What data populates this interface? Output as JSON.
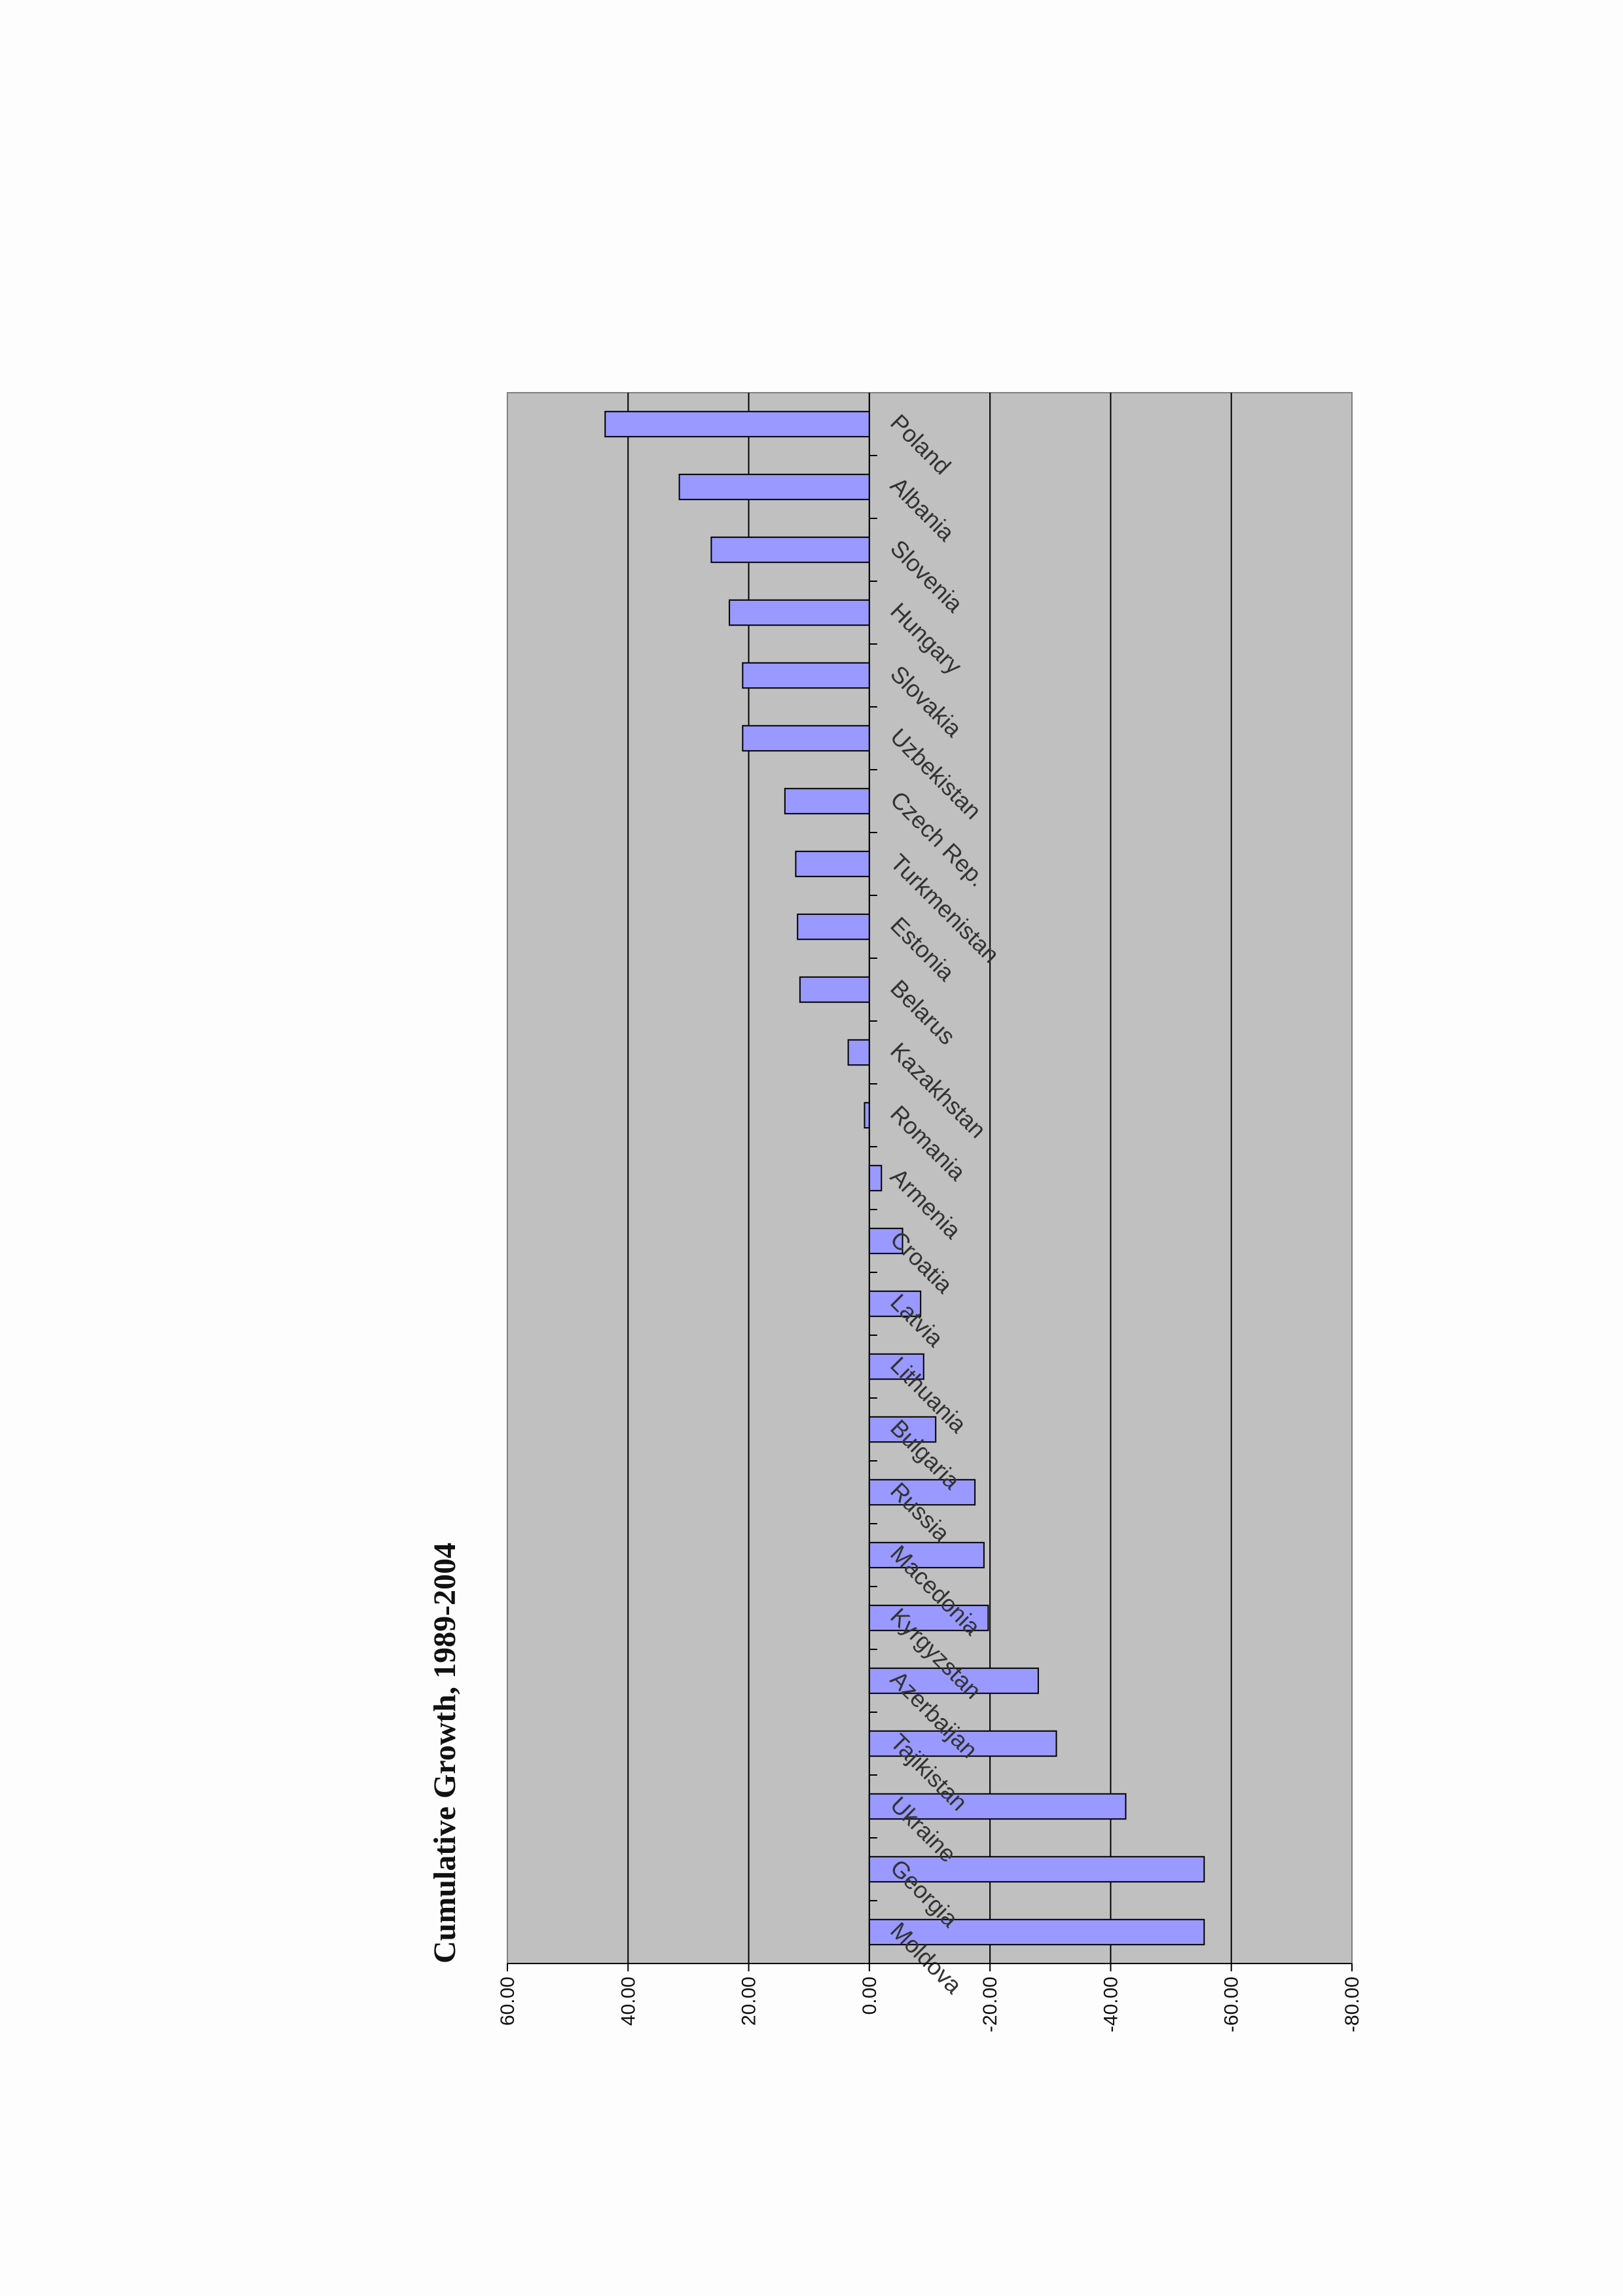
{
  "chart_data": {
    "type": "bar",
    "orientation": "rotated-90-ccw",
    "title": "Cumulative Growth, 1989-2004",
    "xlabel": "",
    "ylabel": "",
    "ylim": [
      -80,
      60
    ],
    "ytick_labels": [
      "60.00",
      "40.00",
      "20.00",
      "0.00",
      "-20.00",
      "-40.00",
      "-60.00",
      "-80.00"
    ],
    "grid": true,
    "legend": "none",
    "categories": [
      "Moldova",
      "Georgia",
      "Ukraine",
      "Tajikistan",
      "Azerbaijan",
      "Kyrgyzstan",
      "Macedonia",
      "Russia",
      "Bulgaria",
      "Lithuania",
      "Latvia",
      "Croatia",
      "Armenia",
      "Romania",
      "Kazakhstan",
      "Belarus",
      "Estonia",
      "Turkmenistan",
      "Czech Rep.",
      "Uzbekistan",
      "Slovakia",
      "Hungary",
      "Slovenia",
      "Albania",
      "Poland"
    ],
    "values": [
      -55.5,
      -55.5,
      -42.5,
      -31,
      -28,
      -19.7,
      -19,
      -17.5,
      -11,
      -9,
      -8.5,
      -5.5,
      -2,
      0.8,
      3.5,
      11.5,
      11.9,
      12.2,
      14,
      21,
      21,
      23.2,
      26.2,
      31.5,
      43.8
    ],
    "colors": {
      "bar_fill": "#9999ff",
      "bar_stroke": "#000000",
      "plot_bg": "#c0c0c0",
      "gridline": "#000000"
    }
  }
}
